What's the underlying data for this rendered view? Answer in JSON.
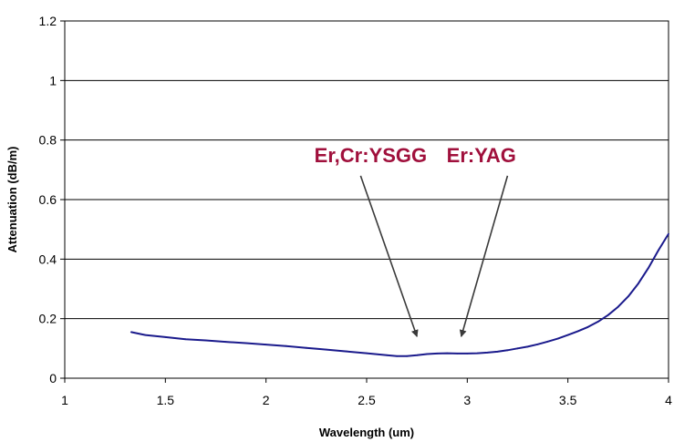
{
  "chart_data": {
    "type": "line",
    "title": "",
    "xlabel": "Wavelength (um)",
    "ylabel": "Attenuation (dB/m)",
    "xlim": [
      1,
      4
    ],
    "ylim": [
      0,
      1.2
    ],
    "x_ticks": [
      "1",
      "1.5",
      "2",
      "2.5",
      "3",
      "3.5",
      "4"
    ],
    "y_ticks": [
      "0",
      "0.2",
      "0.4",
      "0.6",
      "0.8",
      "1",
      "1.2"
    ],
    "grid": "horizontal",
    "legend": "none",
    "series": [
      {
        "color": "#1a1a8c",
        "x": [
          1.33,
          1.4,
          1.5,
          1.6,
          1.7,
          1.8,
          1.9,
          2.0,
          2.1,
          2.2,
          2.3,
          2.4,
          2.5,
          2.6,
          2.65,
          2.7,
          2.75,
          2.8,
          2.85,
          2.9,
          2.95,
          3.0,
          3.05,
          3.1,
          3.15,
          3.2,
          3.25,
          3.3,
          3.35,
          3.4,
          3.45,
          3.5,
          3.55,
          3.6,
          3.65,
          3.7,
          3.75,
          3.8,
          3.85,
          3.9,
          3.95,
          4.0
        ],
        "y": [
          0.155,
          0.145,
          0.138,
          0.131,
          0.127,
          0.122,
          0.118,
          0.113,
          0.108,
          0.102,
          0.096,
          0.09,
          0.084,
          0.077,
          0.074,
          0.074,
          0.077,
          0.081,
          0.083,
          0.084,
          0.083,
          0.083,
          0.084,
          0.086,
          0.089,
          0.094,
          0.1,
          0.106,
          0.114,
          0.123,
          0.133,
          0.145,
          0.158,
          0.172,
          0.19,
          0.212,
          0.24,
          0.275,
          0.318,
          0.37,
          0.43,
          0.485
        ]
      }
    ],
    "annotations": [
      {
        "text": "Er,Cr:YSGG",
        "color": "#a0103c",
        "label_x": 2.52,
        "label_y": 0.725,
        "arrow_from": [
          2.47,
          0.68
        ],
        "arrow_to": [
          2.75,
          0.14
        ]
      },
      {
        "text": "Er:YAG",
        "color": "#a0103c",
        "label_x": 3.07,
        "label_y": 0.725,
        "arrow_from": [
          3.2,
          0.68
        ],
        "arrow_to": [
          2.97,
          0.14
        ]
      }
    ]
  }
}
